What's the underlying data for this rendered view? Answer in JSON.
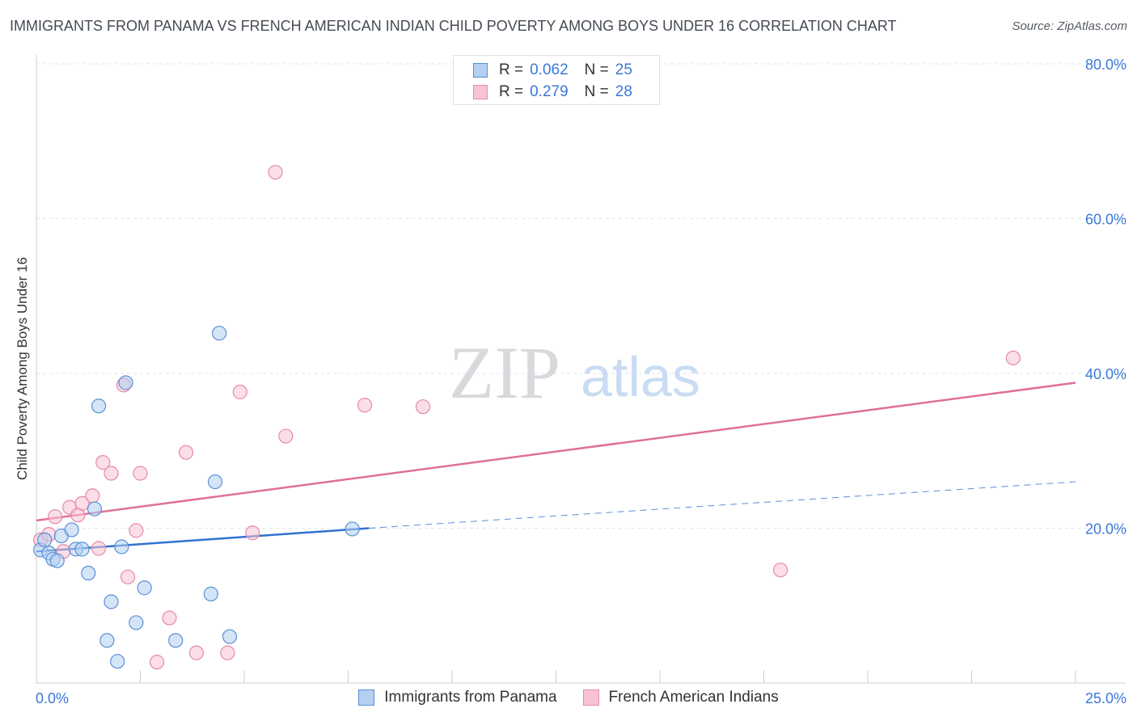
{
  "title": "IMMIGRANTS FROM PANAMA VS FRENCH AMERICAN INDIAN CHILD POVERTY AMONG BOYS UNDER 16 CORRELATION CHART",
  "source": "Source: ZipAtlas.com",
  "watermark": {
    "zip": "ZIP",
    "atlas": "atlas"
  },
  "legend": {
    "series1": {
      "r_label": "R =",
      "r_value": "0.062",
      "n_label": "N =",
      "n_value": "25"
    },
    "series2": {
      "r_label": "R =",
      "r_value": "0.279",
      "n_label": "N =",
      "n_value": "28"
    }
  },
  "colors": {
    "blue_fill": "#b3cff2",
    "blue_stroke": "#5b8fd4",
    "blue_line": "#3272d0",
    "pink_fill": "#f7c3d3",
    "pink_stroke": "#e68aa8",
    "pink_line": "#e0709a",
    "tick_color": "#3b78d8",
    "grid": "#dfe3e8"
  },
  "chart_data": {
    "type": "scatter",
    "title": "IMMIGRANTS FROM PANAMA VS FRENCH AMERICAN INDIAN CHILD POVERTY AMONG BOYS UNDER 16 CORRELATION CHART",
    "xlabel": "",
    "ylabel": "Child Poverty Among Boys Under 16",
    "xlim": [
      0,
      25
    ],
    "ylim": [
      0,
      80
    ],
    "x_tick_labels": [
      "0.0%",
      "25.0%"
    ],
    "y_ticks": [
      20,
      40,
      60,
      80
    ],
    "y_tick_labels": [
      "20.0%",
      "40.0%",
      "60.0%",
      "80.0%"
    ],
    "series": [
      {
        "name": "Immigrants from Panama",
        "color": "blue",
        "points": [
          {
            "x": 0.1,
            "y": 17.2
          },
          {
            "x": 0.2,
            "y": 18.5
          },
          {
            "x": 0.3,
            "y": 16.8
          },
          {
            "x": 0.4,
            "y": 16.0
          },
          {
            "x": 0.5,
            "y": 15.8
          },
          {
            "x": 0.6,
            "y": 19.0
          },
          {
            "x": 0.85,
            "y": 19.8
          },
          {
            "x": 0.95,
            "y": 17.3
          },
          {
            "x": 1.1,
            "y": 17.3
          },
          {
            "x": 1.25,
            "y": 14.2
          },
          {
            "x": 1.4,
            "y": 22.5
          },
          {
            "x": 1.5,
            "y": 35.8
          },
          {
            "x": 1.7,
            "y": 5.5
          },
          {
            "x": 1.8,
            "y": 10.5
          },
          {
            "x": 1.95,
            "y": 2.8
          },
          {
            "x": 2.05,
            "y": 17.6
          },
          {
            "x": 2.15,
            "y": 38.8
          },
          {
            "x": 2.4,
            "y": 7.8
          },
          {
            "x": 2.6,
            "y": 12.3
          },
          {
            "x": 3.35,
            "y": 5.5
          },
          {
            "x": 4.2,
            "y": 11.5
          },
          {
            "x": 4.3,
            "y": 26.0
          },
          {
            "x": 4.4,
            "y": 45.2
          },
          {
            "x": 4.65,
            "y": 6.0
          },
          {
            "x": 7.6,
            "y": 19.9
          }
        ],
        "trend": {
          "x0": 0,
          "y0": 17.0,
          "x1": 8.0,
          "y1": 20.0,
          "dashed_to_x": 25,
          "dashed_to_y": 26.0
        }
      },
      {
        "name": "French American Indians",
        "color": "pink",
        "points": [
          {
            "x": 0.1,
            "y": 18.5
          },
          {
            "x": 0.45,
            "y": 21.5
          },
          {
            "x": 0.65,
            "y": 17.0
          },
          {
            "x": 0.8,
            "y": 22.7
          },
          {
            "x": 1.0,
            "y": 21.7
          },
          {
            "x": 1.1,
            "y": 23.2
          },
          {
            "x": 1.35,
            "y": 24.2
          },
          {
            "x": 1.5,
            "y": 17.4
          },
          {
            "x": 1.6,
            "y": 28.5
          },
          {
            "x": 1.8,
            "y": 27.1
          },
          {
            "x": 2.1,
            "y": 38.5
          },
          {
            "x": 2.2,
            "y": 13.7
          },
          {
            "x": 2.4,
            "y": 19.7
          },
          {
            "x": 2.5,
            "y": 27.1
          },
          {
            "x": 2.9,
            "y": 2.7
          },
          {
            "x": 3.2,
            "y": 8.4
          },
          {
            "x": 3.6,
            "y": 29.8
          },
          {
            "x": 3.85,
            "y": 3.9
          },
          {
            "x": 4.6,
            "y": 3.9
          },
          {
            "x": 4.9,
            "y": 37.6
          },
          {
            "x": 5.2,
            "y": 19.4
          },
          {
            "x": 5.75,
            "y": 66.0
          },
          {
            "x": 6.0,
            "y": 31.9
          },
          {
            "x": 7.9,
            "y": 35.9
          },
          {
            "x": 9.3,
            "y": 35.7
          },
          {
            "x": 17.9,
            "y": 14.6
          },
          {
            "x": 23.5,
            "y": 42.0
          },
          {
            "x": 0.3,
            "y": 19.2
          }
        ],
        "trend": {
          "x0": 0,
          "y0": 21.0,
          "x1": 25,
          "y1": 38.8
        }
      }
    ]
  },
  "bottom_legend": {
    "series1": "Immigrants from Panama",
    "series2": "French American Indians"
  }
}
